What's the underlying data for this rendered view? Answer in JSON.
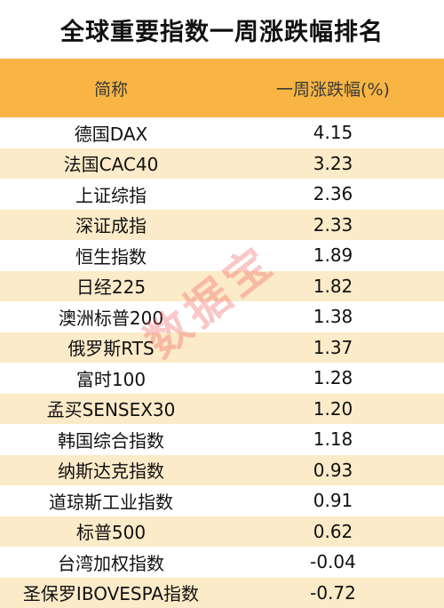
{
  "title": "全球重要指数一周涨跌幅排名",
  "table": {
    "headers": [
      "简称",
      "一周涨跌幅(%)"
    ],
    "rows": [
      {
        "name": "德国DAX",
        "change": "4.15"
      },
      {
        "name": "法国CAC40",
        "change": "3.23"
      },
      {
        "name": "上证综指",
        "change": "2.36"
      },
      {
        "name": "深证成指",
        "change": "2.33"
      },
      {
        "name": "恒生指数",
        "change": "1.89"
      },
      {
        "name": "日经225",
        "change": "1.82"
      },
      {
        "name": "澳洲标普200",
        "change": "1.38"
      },
      {
        "name": "俄罗斯RTS",
        "change": "1.37"
      },
      {
        "name": "富时100",
        "change": "1.28"
      },
      {
        "name": "孟买SENSEX30",
        "change": "1.20"
      },
      {
        "name": "韩国综合指数",
        "change": "1.18"
      },
      {
        "name": "纳斯达克指数",
        "change": "0.93"
      },
      {
        "name": "道琼斯工业指数",
        "change": "0.91"
      },
      {
        "name": "标普500",
        "change": "0.62"
      },
      {
        "name": "台湾加权指数",
        "change": "-0.04"
      },
      {
        "name": "圣保罗IBOVESPA指数",
        "change": "-0.72"
      }
    ]
  },
  "watermark": "数据宝",
  "colors": {
    "header_bg": "#f8b543",
    "stripe_bg": "#fcebc9",
    "watermark": "#f04646"
  }
}
